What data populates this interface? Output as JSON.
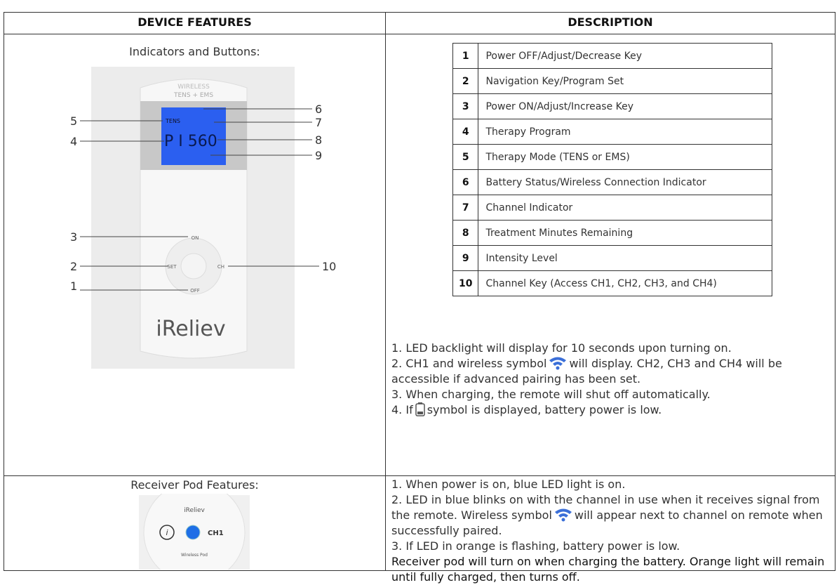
{
  "table": {
    "headers": [
      "DEVICE FEATURES",
      "DESCRIPTION"
    ],
    "row1": {
      "feature_title": "Indicators and Buttons:",
      "device": {
        "brand_top": "WIRELESS",
        "brand_sub": "TENS + EMS",
        "mode": "TENS",
        "screen": "P I 560",
        "buttons": [
          "ON",
          "SET",
          "CH",
          "OFF"
        ],
        "logo": "iReliev",
        "callouts": [
          "1",
          "2",
          "3",
          "4",
          "5",
          "6",
          "7",
          "8",
          "9",
          "10"
        ]
      },
      "key_table": [
        [
          "1",
          "Power OFF/Adjust/Decrease Key"
        ],
        [
          "2",
          "Navigation Key/Program Set"
        ],
        [
          "3",
          "Power ON/Adjust/Increase Key"
        ],
        [
          "4",
          "Therapy Program"
        ],
        [
          "5",
          "Therapy Mode (TENS or EMS)"
        ],
        [
          "6",
          "Battery Status/Wireless Connection Indicator"
        ],
        [
          "7",
          "Channel Indicator"
        ],
        [
          "8",
          "Treatment Minutes Remaining"
        ],
        [
          "9",
          "Intensity Level"
        ],
        [
          "10",
          "Channel Key (Access CH1, CH2, CH3, and CH4)"
        ]
      ],
      "notes": [
        [
          "1. LED backlight will display for 10 seconds upon turning on."
        ],
        [
          "2. CH1 and wireless symbol",
          "will display. CH2, CH3 and CH4 will be accessible if advanced pairing has been set."
        ],
        [
          "3. When charging, the remote will shut off automatically."
        ],
        [
          "4. If",
          "symbol is displayed, battery power is low."
        ]
      ]
    },
    "row2": {
      "feature_title": "Receiver Pod Features:",
      "pod": {
        "logo": "iReliev",
        "channel": "CH1",
        "label": "Wireless Pod"
      },
      "notes": [
        [
          "1. When power is on, blue LED light is on."
        ],
        [
          "2. LED in blue blinks on with the channel in use when it receives signal from the remote. Wireless symbol",
          "will appear next to channel on remote when successfully paired."
        ],
        [
          "3. If LED in orange is flashing, battery power is low."
        ],
        [
          "Receiver pod will turn on when charging the battery. Orange light will remain until fully charged, then turns off."
        ]
      ]
    }
  }
}
